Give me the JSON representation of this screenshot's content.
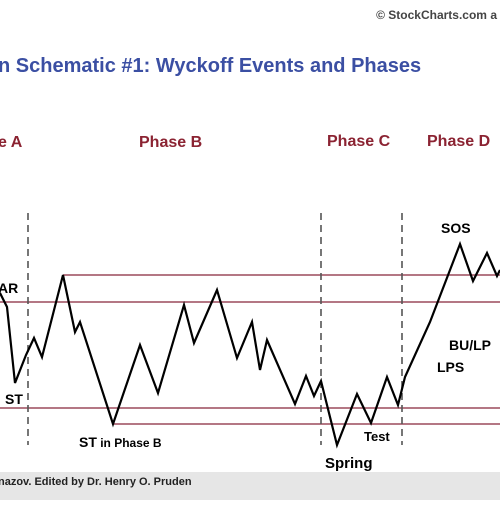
{
  "watermark": "© StockCharts.com a",
  "title": "n Schematic #1: Wyckoff Events and Phases",
  "phases": [
    "e A",
    "Phase B",
    "Phase C",
    "Phase D"
  ],
  "events": {
    "ar": "AR",
    "st": "ST",
    "st_phase_b_prefix": "ST",
    "st_phase_b_suffix": " in Phase B",
    "spring": "Spring",
    "test": "Test",
    "sos": "SOS",
    "bu_lps": "BU/LP",
    "lps": "LPS"
  },
  "credit": "nazov. Edited by Dr. Henry O. Pruden",
  "colors": {
    "title": "#3b4fa3",
    "phase": "#8b2332",
    "level_line": "#9b4a5b",
    "price": "#000000",
    "divider": "#555555",
    "credit_bar": "#e6e6e6"
  }
}
